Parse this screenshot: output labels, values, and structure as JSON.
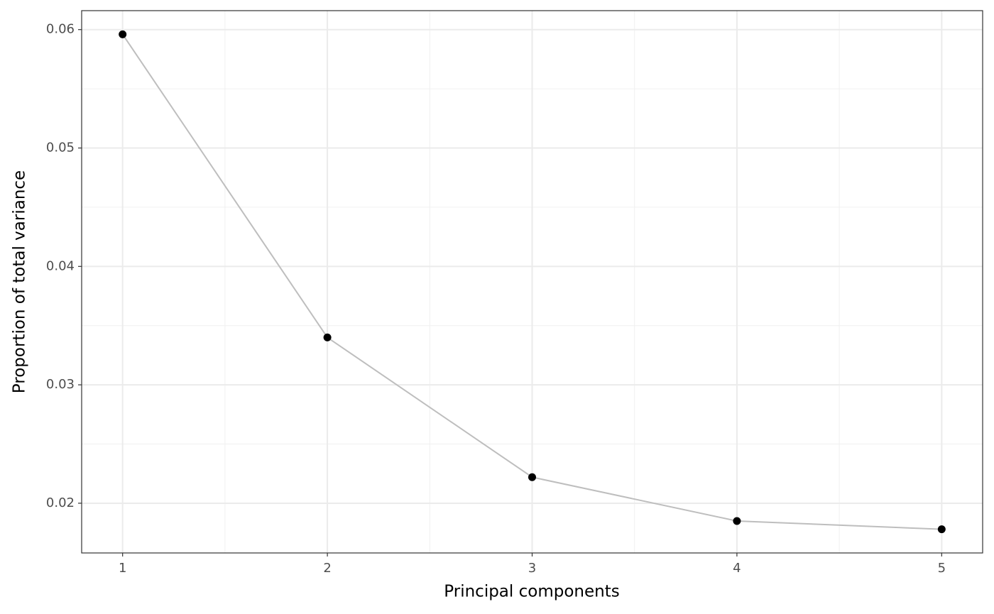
{
  "chart_data": {
    "type": "line",
    "x_label": "Principal components",
    "y_label": "Proportion of total variance",
    "x": [
      1,
      2,
      3,
      4,
      5
    ],
    "values": [
      0.0596,
      0.034,
      0.0222,
      0.0185,
      0.0178
    ],
    "line_color": "#bebebe",
    "marker_color": "#000000",
    "xlim": [
      0.8,
      5.2
    ],
    "xticks": [
      1,
      2,
      3,
      4,
      5
    ],
    "ylim": [
      0.0158,
      0.0616
    ],
    "yticks": [
      0.02,
      0.03,
      0.04,
      0.05,
      0.06
    ],
    "grid": true,
    "minor_grid": true
  }
}
